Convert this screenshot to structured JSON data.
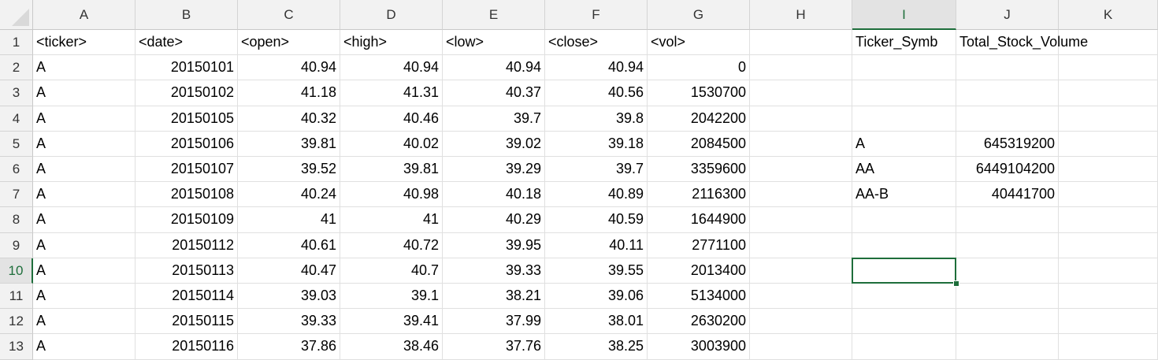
{
  "columns": [
    "A",
    "B",
    "C",
    "D",
    "E",
    "F",
    "G",
    "H",
    "I",
    "J",
    "K"
  ],
  "selected_column": "I",
  "selected_row": "10",
  "rows": [
    {
      "num": "1",
      "cells": [
        "<ticker>",
        "<date>",
        "<open>",
        "<high>",
        "<low>",
        "<close>",
        "<vol>",
        "",
        "Ticker_Symb",
        "Total_Stock_Volume",
        ""
      ]
    },
    {
      "num": "2",
      "cells": [
        "A",
        "20150101",
        "40.94",
        "40.94",
        "40.94",
        "40.94",
        "0",
        "",
        "",
        "",
        ""
      ]
    },
    {
      "num": "3",
      "cells": [
        "A",
        "20150102",
        "41.18",
        "41.31",
        "40.37",
        "40.56",
        "1530700",
        "",
        "",
        "",
        ""
      ]
    },
    {
      "num": "4",
      "cells": [
        "A",
        "20150105",
        "40.32",
        "40.46",
        "39.7",
        "39.8",
        "2042200",
        "",
        "",
        "",
        ""
      ]
    },
    {
      "num": "5",
      "cells": [
        "A",
        "20150106",
        "39.81",
        "40.02",
        "39.02",
        "39.18",
        "2084500",
        "",
        "A",
        "645319200",
        ""
      ]
    },
    {
      "num": "6",
      "cells": [
        "A",
        "20150107",
        "39.52",
        "39.81",
        "39.29",
        "39.7",
        "3359600",
        "",
        "AA",
        "6449104200",
        ""
      ]
    },
    {
      "num": "7",
      "cells": [
        "A",
        "20150108",
        "40.24",
        "40.98",
        "40.18",
        "40.89",
        "2116300",
        "",
        "AA-B",
        "40441700",
        ""
      ]
    },
    {
      "num": "8",
      "cells": [
        "A",
        "20150109",
        "41",
        "41",
        "40.29",
        "40.59",
        "1644900",
        "",
        "",
        "",
        ""
      ]
    },
    {
      "num": "9",
      "cells": [
        "A",
        "20150112",
        "40.61",
        "40.72",
        "39.95",
        "40.11",
        "2771100",
        "",
        "",
        "",
        ""
      ]
    },
    {
      "num": "10",
      "cells": [
        "A",
        "20150113",
        "40.47",
        "40.7",
        "39.33",
        "39.55",
        "2013400",
        "",
        "",
        "",
        ""
      ]
    },
    {
      "num": "11",
      "cells": [
        "A",
        "20150114",
        "39.03",
        "39.1",
        "38.21",
        "39.06",
        "5134000",
        "",
        "",
        "",
        ""
      ]
    },
    {
      "num": "12",
      "cells": [
        "A",
        "20150115",
        "39.33",
        "39.41",
        "37.99",
        "38.01",
        "2630200",
        "",
        "",
        "",
        ""
      ]
    },
    {
      "num": "13",
      "cells": [
        "A",
        "20150116",
        "37.86",
        "38.46",
        "37.76",
        "38.25",
        "3003900",
        "",
        "",
        "",
        ""
      ]
    }
  ]
}
